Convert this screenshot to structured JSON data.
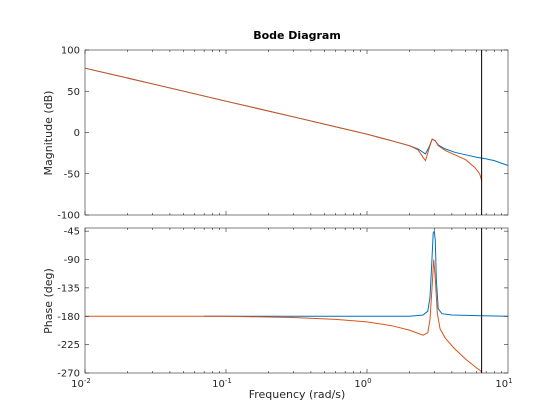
{
  "chart_data": {
    "type": "line",
    "title": "Bode Diagram",
    "xlabel": "Frequency  (rad/s)",
    "xscale": "log",
    "xlim": [
      0.01,
      10
    ],
    "x_ticks": [
      0.01,
      0.1,
      1,
      10
    ],
    "x_tick_labels": [
      "10-2",
      "10-1",
      "100",
      "101"
    ],
    "x_tick_parts": [
      {
        "base": "10",
        "exp": "-2"
      },
      {
        "base": "10",
        "exp": "-1"
      },
      {
        "base": "10",
        "exp": "0"
      },
      {
        "base": "10",
        "exp": "1"
      }
    ],
    "vertical_marker_x": 6.5,
    "marker_color": "#000000",
    "grid": false,
    "panels": [
      {
        "name": "magnitude",
        "ylabel": "Magnitude (dB)",
        "ylim": [
          -100,
          100
        ],
        "y_ticks": [
          100,
          50,
          0,
          -50,
          -100
        ],
        "y_tick_labels": [
          "100",
          "50",
          "0",
          "-50",
          "-100"
        ],
        "series": [
          {
            "color": "#0072bd",
            "x": [
              0.01,
              0.03,
              0.1,
              0.3,
              1,
              1.5,
              2,
              2.3,
              2.6,
              2.75,
              2.9,
              3.05,
              3.2,
              3.6,
              4.2,
              5,
              6,
              7,
              8,
              10
            ],
            "y": [
              78,
              59,
              38,
              19,
              -2,
              -10,
              -16,
              -20,
              -26,
              -18,
              -8,
              -10,
              -15,
              -20,
              -24,
              -27,
              -30,
              -32,
              -34,
              -40
            ]
          },
          {
            "color": "#d95319",
            "x": [
              0.01,
              0.03,
              0.1,
              0.3,
              1,
              1.5,
              2,
              2.3,
              2.5,
              2.6,
              2.75,
              2.9,
              3.05,
              3.2,
              3.6,
              4.2,
              5,
              5.8,
              6.3,
              6.5
            ],
            "y": [
              78,
              59,
              38,
              19,
              -2,
              -10,
              -16,
              -21,
              -30,
              -34,
              -20,
              -8,
              -10,
              -16,
              -22,
              -27,
              -33,
              -42,
              -50,
              -58
            ]
          }
        ]
      },
      {
        "name": "phase",
        "ylabel": "Phase (deg)",
        "ylim": [
          -270,
          -40
        ],
        "y_ticks": [
          -45,
          -90,
          -135,
          -180,
          -225,
          -270
        ],
        "y_tick_labels": [
          "-45",
          "-90",
          "-135",
          "-180",
          "-225",
          "-270"
        ],
        "series": [
          {
            "color": "#0072bd",
            "x": [
              0.07,
              0.3,
              1,
              2,
              2.5,
              2.7,
              2.8,
              2.88,
              2.95,
              3.0,
              3.05,
              3.1,
              3.2,
              3.4,
              4,
              6,
              10
            ],
            "y": [
              -180,
              -180,
              -180,
              -180,
              -178,
              -172,
              -150,
              -95,
              -48,
              -45,
              -60,
              -120,
              -168,
              -176,
              -178,
              -179,
              -180
            ]
          },
          {
            "color": "#d95319",
            "x": [
              0.01,
              0.03,
              0.1,
              0.3,
              0.6,
              1,
              1.5,
              2,
              2.5,
              2.7,
              2.8,
              2.9,
              2.97,
              3.05,
              3.15,
              3.3,
              3.6,
              4.2,
              5,
              6,
              6.5
            ],
            "y": [
              -180,
              -180,
              -180,
              -182,
              -185,
              -189,
              -195,
              -202,
              -210,
              -206,
              -185,
              -130,
              -90,
              -120,
              -175,
              -200,
              -215,
              -232,
              -248,
              -262,
              -268
            ]
          }
        ]
      }
    ]
  }
}
